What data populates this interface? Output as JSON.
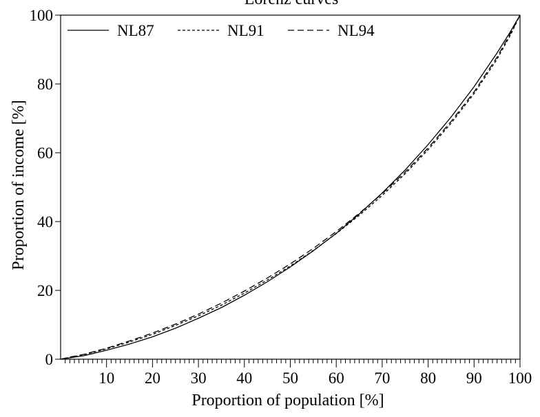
{
  "chart_data": {
    "type": "line",
    "title": "Lorenz curves",
    "xlabel": "Proportion of population [%]",
    "ylabel": "Proportion of income [%]",
    "xlim": [
      0,
      100
    ],
    "ylim": [
      0,
      100
    ],
    "x_ticks": [
      "10",
      "20",
      "30",
      "40",
      "50",
      "60",
      "70",
      "80",
      "90",
      "100"
    ],
    "y_ticks": [
      "0",
      "20",
      "40",
      "60",
      "80",
      "100"
    ],
    "grid": false,
    "legend_position": "top",
    "x": [
      0,
      1,
      2,
      5,
      10,
      15,
      20,
      25,
      30,
      35,
      40,
      45,
      50,
      55,
      60,
      65,
      70,
      75,
      80,
      85,
      90,
      95,
      98,
      100
    ],
    "series": [
      {
        "name": "NL87",
        "dash": "solid",
        "values": [
          0,
          0.2,
          0.4,
          1.0,
          2.6,
          4.4,
          6.5,
          9.0,
          11.9,
          15.0,
          18.6,
          22.5,
          26.8,
          31.5,
          36.6,
          42.2,
          48.3,
          55.0,
          62.4,
          70.4,
          79.2,
          89.0,
          95.4,
          100
        ]
      },
      {
        "name": "NL91",
        "dash": "dotted",
        "values": [
          0,
          0.3,
          0.5,
          1.3,
          3.0,
          5.0,
          7.2,
          9.8,
          12.6,
          15.7,
          19.2,
          23.0,
          27.1,
          31.6,
          36.5,
          41.8,
          47.6,
          53.9,
          60.9,
          68.6,
          77.2,
          87.2,
          94.4,
          100
        ]
      },
      {
        "name": "NL94",
        "dash": "dashed",
        "values": [
          0,
          0.3,
          0.6,
          1.4,
          3.2,
          5.3,
          7.6,
          10.2,
          13.1,
          16.3,
          19.8,
          23.6,
          27.7,
          32.2,
          37.1,
          42.4,
          48.1,
          54.4,
          61.4,
          69.1,
          77.7,
          87.8,
          94.9,
          100
        ]
      }
    ]
  }
}
